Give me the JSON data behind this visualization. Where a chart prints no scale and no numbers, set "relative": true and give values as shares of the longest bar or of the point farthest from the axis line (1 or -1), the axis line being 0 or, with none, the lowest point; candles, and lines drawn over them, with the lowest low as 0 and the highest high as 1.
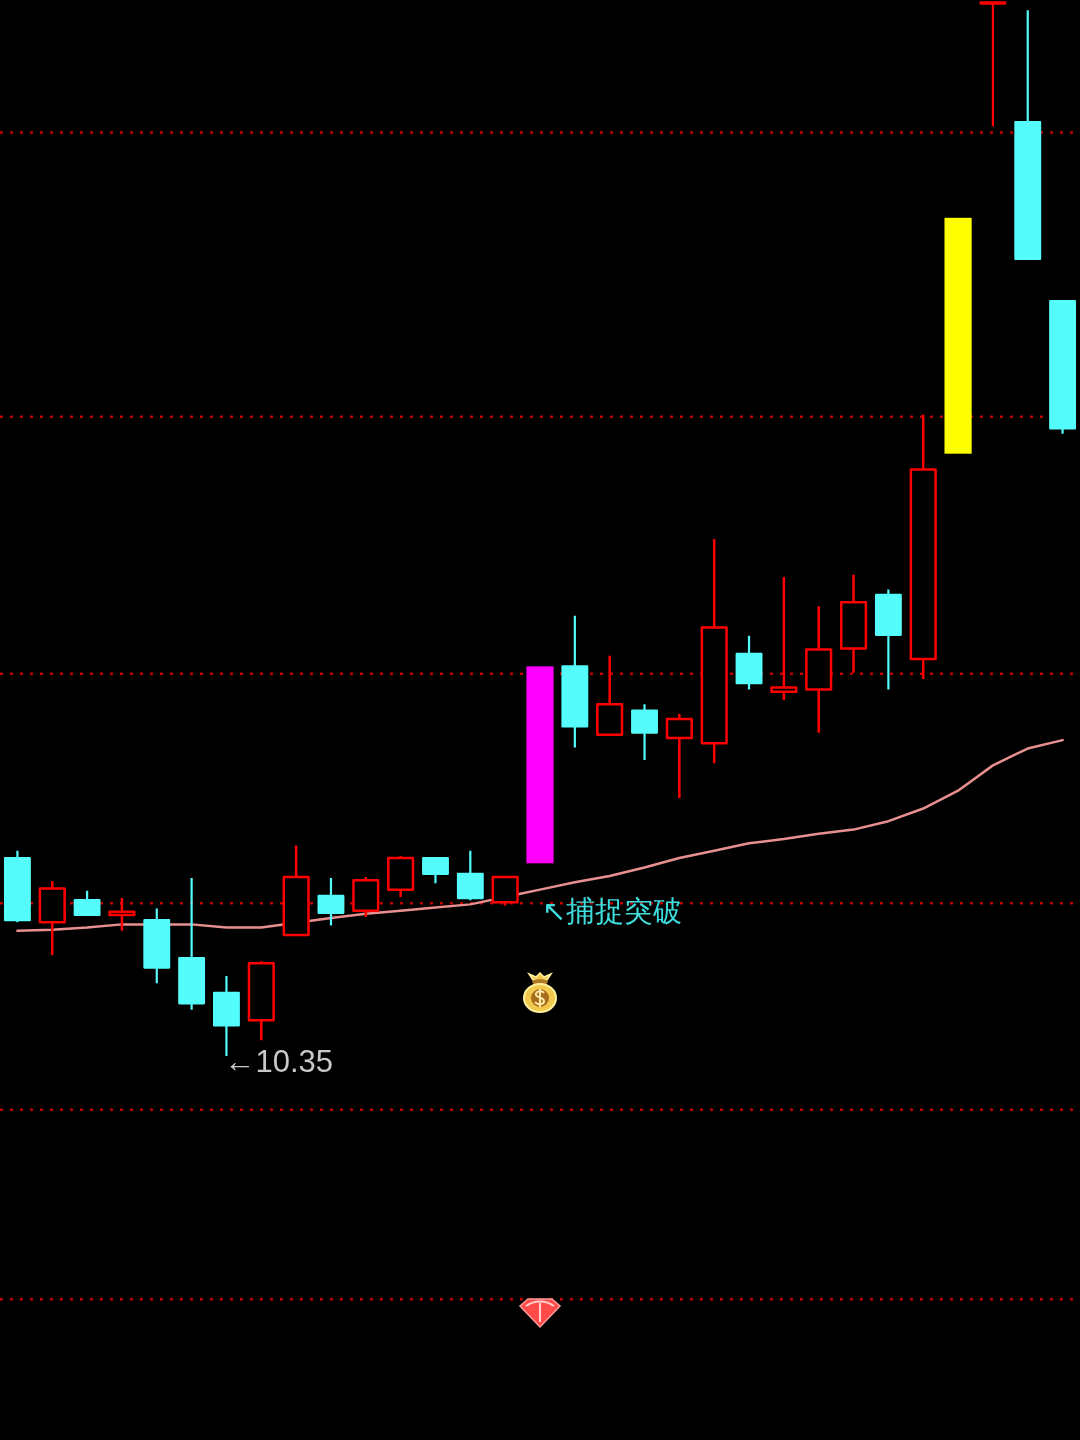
{
  "chart_data": {
    "type": "candlestick",
    "relative": true,
    "categories": [
      null,
      null,
      null,
      null,
      null,
      null,
      null,
      null,
      null,
      null,
      null,
      null,
      null,
      null,
      null,
      null,
      null,
      null,
      null,
      null,
      null,
      null,
      null,
      null,
      null,
      null,
      null,
      null,
      null,
      null,
      null
    ],
    "ohlc": [
      [
        0.188,
        0.195,
        0.127,
        0.129
      ],
      [
        0.127,
        0.166,
        0.096,
        0.159
      ],
      [
        0.148,
        0.157,
        0.134,
        0.134
      ],
      [
        0.134,
        0.15,
        0.119,
        0.137
      ],
      [
        0.129,
        0.14,
        0.069,
        0.084
      ],
      [
        0.093,
        0.169,
        0.044,
        0.05
      ],
      [
        0.06,
        0.076,
        0,
        0.029
      ],
      [
        0.034,
        0.09,
        0.015,
        0.088
      ],
      [
        0.115,
        0.2,
        0.115,
        0.17
      ],
      [
        0.152,
        0.169,
        0.124,
        0.136
      ],
      [
        0.138,
        0.17,
        0.132,
        0.167
      ],
      [
        0.158,
        0.19,
        0.151,
        0.188
      ],
      [
        0.188,
        0.188,
        0.164,
        0.173
      ],
      [
        0.173,
        0.195,
        0.148,
        0.15
      ],
      [
        0.146,
        0.17,
        0.143,
        0.17
      ],
      null,
      [
        0.37,
        0.418,
        0.293,
        0.313
      ],
      [
        0.305,
        0.38,
        0.305,
        0.334
      ],
      [
        0.328,
        0.334,
        0.281,
        0.307
      ],
      [
        0.302,
        0.325,
        0.245,
        0.32
      ],
      [
        0.297,
        0.491,
        0.278,
        0.407
      ],
      [
        0.382,
        0.399,
        0.348,
        0.354
      ],
      [
        0.346,
        0.455,
        0.338,
        0.35
      ],
      [
        0.348,
        0.427,
        0.307,
        0.386
      ],
      [
        0.387,
        0.457,
        0.364,
        0.431
      ],
      [
        0.438,
        0.443,
        0.348,
        0.4
      ],
      [
        0.377,
        0.609,
        0.358,
        0.557
      ],
      null,
      [
        1,
        1,
        0.883,
        1
      ],
      [
        0.887,
        0.993,
        0.757,
        0.757
      ],
      [
        0.717,
        0.717,
        0.591,
        0.596
      ]
    ],
    "colors": [
      "#54fcfc",
      "#ff0000",
      "#54fcfc",
      "#ff0000",
      "#54fcfc",
      "#54fcfc",
      "#54fcfc",
      "#ff0000",
      "#ff0000",
      "#54fcfc",
      "#ff0000",
      "#ff0000",
      "#54fcfc",
      "#54fcfc",
      "#ff0000",
      null,
      "#54fcfc",
      "#ff0000",
      "#54fcfc",
      "#ff0000",
      "#ff0000",
      "#54fcfc",
      "#ff0000",
      "#ff0000",
      "#ff0000",
      "#54fcfc",
      "#ff0000",
      null,
      "#ff0000",
      "#54fcfc",
      "#54fcfc"
    ],
    "series": [
      {
        "type": "line",
        "color": "#e89090",
        "values": [
          0.119,
          0.12,
          0.122,
          0.125,
          null,
          0.125,
          0.122,
          0.122,
          null,
          0.131,
          0.135,
          0.138,
          0.141,
          0.144,
          null,
          0.158,
          0.165,
          0.171,
          0.179,
          0.188,
          0.195,
          0.202,
          0.206,
          0.211,
          0.215,
          0.223,
          0.235,
          0.252,
          0.276,
          0.292,
          0.3
        ]
      },
      {
        "type": "bar",
        "base": [
          null,
          null,
          null,
          null,
          null,
          null,
          null,
          null,
          null,
          null,
          null,
          null,
          null,
          null,
          null,
          0.183,
          null,
          null,
          null,
          null,
          null,
          null,
          null,
          null,
          null,
          null,
          null,
          0.572,
          null,
          null,
          null
        ],
        "values": [
          null,
          null,
          null,
          null,
          null,
          null,
          null,
          null,
          null,
          null,
          null,
          null,
          null,
          null,
          null,
          0.187,
          null,
          null,
          null,
          null,
          null,
          null,
          null,
          null,
          null,
          null,
          null,
          0.224,
          null,
          null,
          null
        ],
        "colors": [
          null,
          null,
          null,
          null,
          null,
          null,
          null,
          null,
          null,
          null,
          null,
          null,
          null,
          null,
          null,
          "#ff00ff",
          null,
          null,
          null,
          null,
          null,
          null,
          null,
          null,
          null,
          null,
          null,
          "#ffff00",
          null,
          null,
          null
        ]
      }
    ],
    "ref_lines": [
      {
        "axis": "y",
        "value": 0.877,
        "color": "#c00000",
        "line_style": "dotted"
      },
      {
        "axis": "y",
        "value": 0.607,
        "color": "#c00000",
        "line_style": "dotted"
      },
      {
        "axis": "y",
        "value": 0.363,
        "color": "#c00000",
        "line_style": "dotted"
      },
      {
        "axis": "y",
        "value": 0.145,
        "color": "#c00000",
        "line_style": "dotted"
      },
      {
        "axis": "y",
        "value": -0.051,
        "color": "#c00000",
        "line_style": "dotted"
      },
      {
        "axis": "y",
        "value": -0.231,
        "color": "#c00000",
        "line_style": "dotted"
      }
    ],
    "annotations": [
      "←10.35",
      "↖捕捉突破"
    ]
  }
}
